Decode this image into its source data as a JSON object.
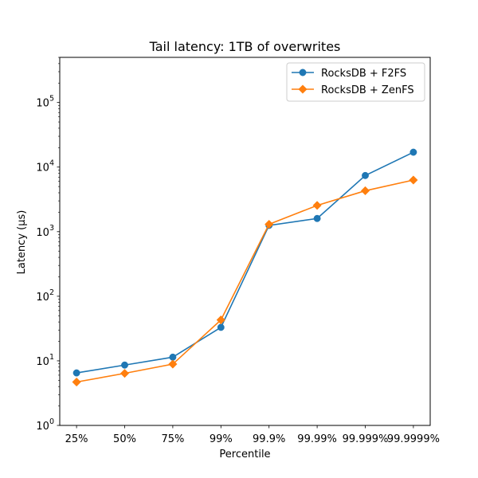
{
  "chart_data": {
    "type": "line",
    "title": "Tail latency: 1TB of overwrites",
    "xlabel": "Percentile",
    "ylabel": "Latency (µs)",
    "yscale": "log",
    "ylim": [
      1,
      500000
    ],
    "categories": [
      "25%",
      "50%",
      "75%",
      "99%",
      "99.9%",
      "99.99%",
      "99.999%",
      "99.9999%"
    ],
    "yticks": [
      {
        "value": 1,
        "base": "10",
        "exp": "0"
      },
      {
        "value": 10,
        "base": "10",
        "exp": "1"
      },
      {
        "value": 100,
        "base": "10",
        "exp": "2"
      },
      {
        "value": 1000,
        "base": "10",
        "exp": "3"
      },
      {
        "value": 10000,
        "base": "10",
        "exp": "4"
      },
      {
        "value": 100000,
        "base": "10",
        "exp": "5"
      }
    ],
    "legend_position": "upper right",
    "grid": false,
    "series": [
      {
        "name": "RocksDB + F2FS",
        "color": "#1f77b4",
        "marker": "circle",
        "values": [
          6.5,
          8.6,
          11.4,
          33,
          1250,
          1600,
          7400,
          17000
        ]
      },
      {
        "name": "RocksDB + ZenFS",
        "color": "#ff7f0e",
        "marker": "diamond",
        "values": [
          4.7,
          6.4,
          8.9,
          43,
          1300,
          2550,
          4300,
          6300
        ]
      }
    ]
  }
}
